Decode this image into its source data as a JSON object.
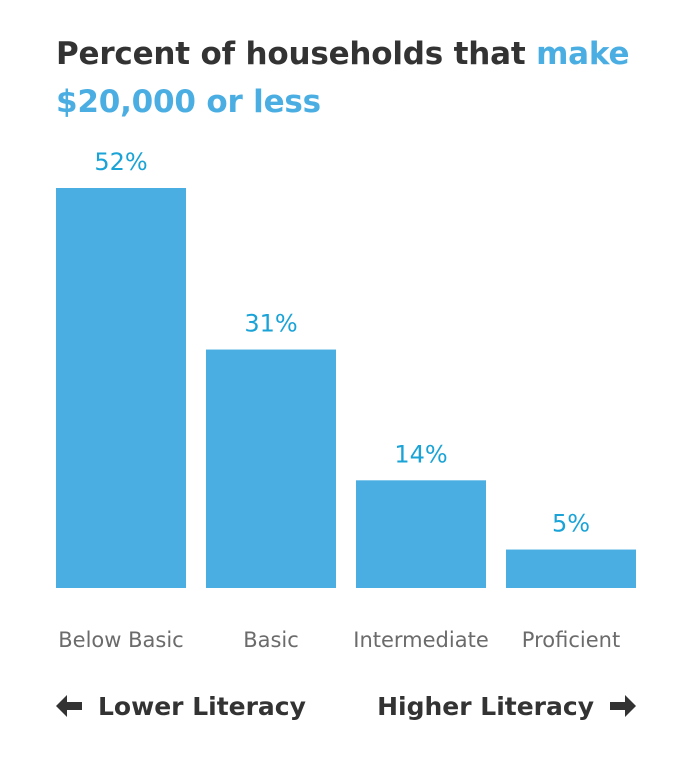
{
  "title": {
    "main": "Percent of households that ",
    "highlight": "make $20,000 or less"
  },
  "chart_data": {
    "type": "bar",
    "title": "Percent of households that make $20,000 or less",
    "categories": [
      "Below Basic",
      "Basic",
      "Intermediate",
      "Proficient"
    ],
    "values": [
      52,
      31,
      14,
      5
    ],
    "data_labels": [
      "52%",
      "31%",
      "14%",
      "5%"
    ],
    "ylim": [
      0,
      52
    ],
    "grid": false,
    "colors": {
      "bar": "#4aaee3",
      "data_label": "#1aa3d6",
      "category_label": "#6b6b6b",
      "title": "#333333",
      "title_highlight": "#4aaee3"
    }
  },
  "footer": {
    "left_label": "Lower Literacy",
    "right_label": "Higher Literacy",
    "left_icon": "arrow-left-icon",
    "right_icon": "arrow-right-icon"
  }
}
